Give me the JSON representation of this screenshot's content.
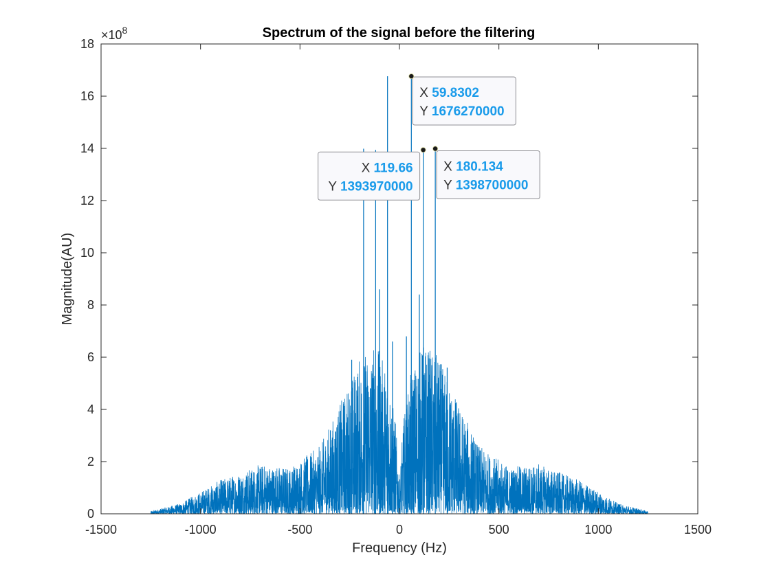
{
  "chart_data": {
    "type": "line",
    "title": "Spectrum of the signal before the filtering",
    "xlabel": "Frequency (Hz)",
    "ylabel": "Magnitude(AU)",
    "y_exponent_label": "×10",
    "y_exponent_power": "8",
    "xlim": [
      -1500,
      1500
    ],
    "ylim": [
      0,
      18
    ],
    "x_ticks": [
      -1500,
      -1000,
      -500,
      0,
      500,
      1000,
      1500
    ],
    "x_tick_labels": [
      "-1500",
      "-1000",
      "-500",
      "0",
      "500",
      "1000",
      "1500"
    ],
    "y_ticks": [
      0,
      2,
      4,
      6,
      8,
      10,
      12,
      14,
      16,
      18
    ],
    "y_tick_labels": [
      "0",
      "2",
      "4",
      "6",
      "8",
      "10",
      "12",
      "14",
      "16",
      "18"
    ],
    "grid": false,
    "line_color": "#0072bd",
    "series": [
      {
        "color": "#0072bd",
        "x_range": [
          -1250,
          1250
        ],
        "envelope": [
          {
            "x": -1250,
            "y": 0.1
          },
          {
            "x": -1100,
            "y": 0.4
          },
          {
            "x": -900,
            "y": 1.3
          },
          {
            "x": -700,
            "y": 1.9
          },
          {
            "x": -550,
            "y": 1.8
          },
          {
            "x": -400,
            "y": 2.6
          },
          {
            "x": -300,
            "y": 4.2
          },
          {
            "x": -200,
            "y": 6.0
          },
          {
            "x": -120,
            "y": 6.6
          },
          {
            "x": -60,
            "y": 5.5
          },
          {
            "x": -20,
            "y": 3.6
          },
          {
            "x": 0,
            "y": 1.2
          },
          {
            "x": 20,
            "y": 3.6
          },
          {
            "x": 60,
            "y": 5.5
          },
          {
            "x": 120,
            "y": 6.6
          },
          {
            "x": 200,
            "y": 6.0
          },
          {
            "x": 300,
            "y": 4.2
          },
          {
            "x": 400,
            "y": 2.6
          },
          {
            "x": 550,
            "y": 1.8
          },
          {
            "x": 700,
            "y": 1.9
          },
          {
            "x": 900,
            "y": 1.3
          },
          {
            "x": 1100,
            "y": 0.4
          },
          {
            "x": 1250,
            "y": 0.1
          }
        ],
        "peaks": [
          {
            "x": -180.134,
            "y": 13.987
          },
          {
            "x": -119.66,
            "y": 13.9397
          },
          {
            "x": -59.8302,
            "y": 16.7627
          },
          {
            "x": 59.8302,
            "y": 16.7627
          },
          {
            "x": 119.66,
            "y": 13.9397
          },
          {
            "x": 180.134,
            "y": 13.987
          },
          {
            "x": -100,
            "y": 8.6
          },
          {
            "x": 100,
            "y": 8.4
          },
          {
            "x": -35,
            "y": 6.6
          },
          {
            "x": 35,
            "y": 6.8
          },
          {
            "x": -240,
            "y": 5.9
          },
          {
            "x": 240,
            "y": 5.6
          }
        ]
      }
    ],
    "datatips": [
      {
        "x_label": "X",
        "x_value": "59.8302",
        "y_label": "Y",
        "y_value": "1676270000",
        "x": 59.8302,
        "y": 16.7627
      },
      {
        "x_label": "X",
        "x_value": "119.66",
        "y_label": "Y",
        "y_value": "1393970000",
        "x": 119.66,
        "y": 13.9397
      },
      {
        "x_label": "X",
        "x_value": "180.134",
        "y_label": "Y",
        "y_value": "1398700000",
        "x": 180.134,
        "y": 13.987
      }
    ]
  }
}
